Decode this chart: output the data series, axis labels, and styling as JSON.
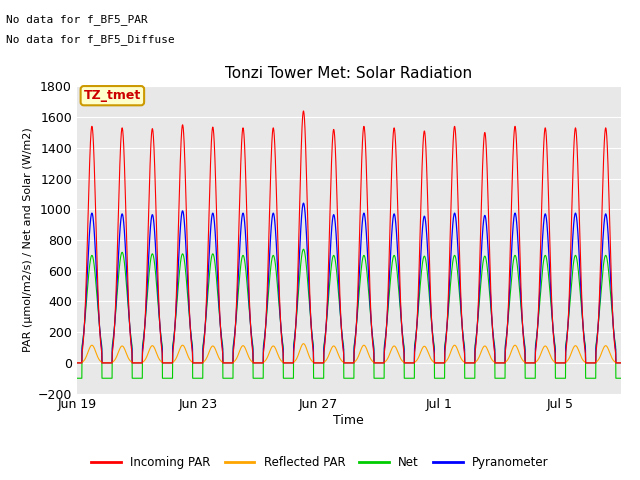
{
  "title": "Tonzi Tower Met: Solar Radiation",
  "xlabel": "Time",
  "ylabel": "PAR (μmol/m2/s) / Net and Solar (W/m2)",
  "ylim": [
    -200,
    1800
  ],
  "yticks": [
    -200,
    0,
    200,
    400,
    600,
    800,
    1000,
    1200,
    1400,
    1600,
    1800
  ],
  "annotation_lines": [
    "No data for f_BF5_PAR",
    "No data for f_BF5_Diffuse"
  ],
  "legend_label": "TZ_tmet",
  "legend_label_color": "#cc0000",
  "legend_label_bg": "#ffffcc",
  "legend_label_border": "#cc9900",
  "colors": {
    "incoming_par": "#ff0000",
    "reflected_par": "#ffa500",
    "net": "#00cc00",
    "pyranometer": "#0000ff"
  },
  "legend_entries": [
    "Incoming PAR",
    "Reflected PAR",
    "Net",
    "Pyranometer"
  ],
  "figure_bg_color": "#ffffff",
  "plot_bg_color": "#e8e8e8",
  "n_days": 18,
  "x_tick_labels": [
    "Jun 19",
    "Jun 23",
    "Jun 27",
    "Jul 1",
    "Jul 5"
  ],
  "x_tick_positions": [
    0,
    4,
    8,
    12,
    16
  ],
  "points_per_day": 288,
  "incoming_peaks": [
    1540,
    1530,
    1525,
    1550,
    1535,
    1530,
    1530,
    1640,
    1520,
    1540,
    1530,
    1510,
    1540,
    1500,
    1540,
    1530,
    1530,
    1530
  ],
  "pyranometer_peaks": [
    975,
    970,
    965,
    990,
    975,
    975,
    975,
    1040,
    965,
    975,
    970,
    955,
    975,
    960,
    975,
    970,
    975,
    970
  ],
  "reflected_peaks": [
    115,
    110,
    112,
    115,
    110,
    112,
    110,
    125,
    110,
    115,
    110,
    108,
    115,
    110,
    115,
    110,
    112,
    112
  ],
  "net_peaks": [
    700,
    720,
    710,
    710,
    710,
    700,
    700,
    740,
    700,
    700,
    700,
    695,
    700,
    695,
    700,
    700,
    700,
    700
  ],
  "net_night": -100,
  "sigma_inc": 0.13,
  "sigma_pyr": 0.15,
  "sigma_ref": 0.13,
  "sigma_net": 0.17,
  "day_start": 0.17,
  "day_end": 0.83
}
